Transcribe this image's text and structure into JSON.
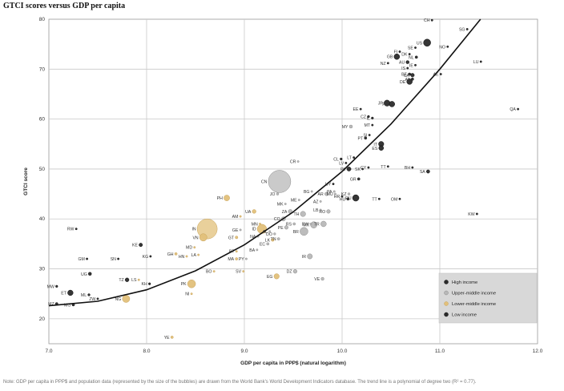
{
  "chart_data": {
    "type": "scatter",
    "title": "GTCI scores versus GDP per capita",
    "xlabel": "GDP per capita in PPP$ (natural logarithm)",
    "ylabel": "GTCI score",
    "xlim": [
      7.0,
      12.0
    ],
    "ylim": [
      15,
      80
    ],
    "x_ticks": [
      "7.0",
      "8.0",
      "9.0",
      "10.0",
      "11.0",
      "12.0"
    ],
    "y_ticks": [
      "20",
      "30",
      "40",
      "50",
      "60",
      "70",
      "80"
    ],
    "grid": true,
    "legend_position": "bottom-right",
    "colors": {
      "high": "#2b2b2b",
      "upper": "#b8b8b8",
      "lower": "#e2c07a",
      "low": "#2b2b2b",
      "trend": "#111111",
      "legend_bg": "#d8d8d8"
    },
    "series": [
      {
        "name": "High income",
        "key": "high"
      },
      {
        "name": "Upper-middle income",
        "key": "upper"
      },
      {
        "name": "Lower-middle income",
        "key": "lower"
      },
      {
        "name": "Low income",
        "key": "low"
      }
    ],
    "points": [
      {
        "label": "CH",
        "x": 10.92,
        "y": 79.8,
        "group": "high",
        "size": 1.2
      },
      {
        "label": "SG",
        "x": 11.28,
        "y": 78.0,
        "group": "high",
        "size": 1.2
      },
      {
        "label": "US",
        "x": 10.87,
        "y": 75.3,
        "group": "high",
        "size": 4.5
      },
      {
        "label": "NO",
        "x": 11.08,
        "y": 74.5,
        "group": "high",
        "size": 1.2
      },
      {
        "label": "SE",
        "x": 10.75,
        "y": 74.3,
        "group": "high",
        "size": 1.2
      },
      {
        "label": "FI",
        "x": 10.59,
        "y": 73.5,
        "group": "high",
        "size": 1.2
      },
      {
        "label": "DK",
        "x": 10.69,
        "y": 73.0,
        "group": "high",
        "size": 1.2
      },
      {
        "label": "GB",
        "x": 10.56,
        "y": 72.5,
        "group": "high",
        "size": 3.5
      },
      {
        "label": "NL",
        "x": 10.76,
        "y": 72.4,
        "group": "high",
        "size": 1.6
      },
      {
        "label": "NZ",
        "x": 10.47,
        "y": 71.2,
        "group": "high",
        "size": 1.2
      },
      {
        "label": "AU",
        "x": 10.67,
        "y": 71.4,
        "group": "high",
        "size": 2.0
      },
      {
        "label": "IE",
        "x": 10.75,
        "y": 70.8,
        "group": "high",
        "size": 1.2
      },
      {
        "label": "LU",
        "x": 11.42,
        "y": 71.5,
        "group": "high",
        "size": 1.2
      },
      {
        "label": "IS",
        "x": 10.67,
        "y": 70.2,
        "group": "high",
        "size": 1.2
      },
      {
        "label": "BE",
        "x": 10.69,
        "y": 69.0,
        "group": "high",
        "size": 1.6
      },
      {
        "label": "CA",
        "x": 10.72,
        "y": 68.8,
        "group": "high",
        "size": 2.3
      },
      {
        "label": "AE",
        "x": 11.01,
        "y": 69.0,
        "group": "high",
        "size": 1.2
      },
      {
        "label": "AT",
        "x": 10.72,
        "y": 68.0,
        "group": "high",
        "size": 1.6
      },
      {
        "label": "DE",
        "x": 10.69,
        "y": 67.5,
        "group": "high",
        "size": 3.5
      },
      {
        "label": "JP",
        "x": 10.46,
        "y": 63.2,
        "group": "high",
        "size": 3.8
      },
      {
        "label": "FR",
        "x": 10.51,
        "y": 63.0,
        "group": "high",
        "size": 3.5
      },
      {
        "label": "QA",
        "x": 11.8,
        "y": 62.0,
        "group": "high",
        "size": 1.2
      },
      {
        "label": "EE",
        "x": 10.19,
        "y": 62.0,
        "group": "high",
        "size": 1.2
      },
      {
        "label": "CZ",
        "x": 10.27,
        "y": 60.5,
        "group": "high",
        "size": 1.4
      },
      {
        "label": "IL",
        "x": 10.31,
        "y": 60.2,
        "group": "high",
        "size": 1.4
      },
      {
        "label": "MY",
        "x": 10.09,
        "y": 58.5,
        "group": "upper",
        "size": 2.0
      },
      {
        "label": "MT",
        "x": 10.31,
        "y": 58.8,
        "group": "high",
        "size": 1.2
      },
      {
        "label": "PT",
        "x": 10.24,
        "y": 56.2,
        "group": "high",
        "size": 1.6
      },
      {
        "label": "SI",
        "x": 10.28,
        "y": 56.8,
        "group": "high",
        "size": 1.2
      },
      {
        "label": "IT",
        "x": 10.4,
        "y": 55.0,
        "group": "high",
        "size": 3.3
      },
      {
        "label": "ES",
        "x": 10.4,
        "y": 54.2,
        "group": "high",
        "size": 3.0
      },
      {
        "label": "CL",
        "x": 9.99,
        "y": 52.0,
        "group": "high",
        "size": 1.4
      },
      {
        "label": "LT",
        "x": 10.12,
        "y": 52.3,
        "group": "high",
        "size": 1.2
      },
      {
        "label": "LV",
        "x": 10.04,
        "y": 51.2,
        "group": "high",
        "size": 1.2
      },
      {
        "label": "SK",
        "x": 10.21,
        "y": 50.0,
        "group": "high",
        "size": 1.2
      },
      {
        "label": "CY",
        "x": 10.27,
        "y": 50.3,
        "group": "high",
        "size": 1.2
      },
      {
        "label": "PL",
        "x": 10.07,
        "y": 50.0,
        "group": "high",
        "size": 2.6
      },
      {
        "label": "TT",
        "x": 10.47,
        "y": 50.5,
        "group": "high",
        "size": 1.2
      },
      {
        "label": "BH",
        "x": 10.72,
        "y": 50.3,
        "group": "high",
        "size": 1.2
      },
      {
        "label": "SA",
        "x": 10.88,
        "y": 49.5,
        "group": "high",
        "size": 2.1
      },
      {
        "label": "GR",
        "x": 10.17,
        "y": 48.0,
        "group": "high",
        "size": 1.6
      },
      {
        "label": "CR",
        "x": 9.55,
        "y": 51.5,
        "group": "upper",
        "size": 1.2
      },
      {
        "label": "CN",
        "x": 9.36,
        "y": 47.5,
        "group": "upper",
        "size": 14.0
      },
      {
        "label": "UY",
        "x": 9.91,
        "y": 47.0,
        "group": "high",
        "size": 1.2
      },
      {
        "label": "PA",
        "x": 9.92,
        "y": 45.5,
        "group": "upper",
        "size": 1.2
      },
      {
        "label": "MU",
        "x": 9.93,
        "y": 45.0,
        "group": "upper",
        "size": 1.2
      },
      {
        "label": "BG",
        "x": 9.69,
        "y": 45.5,
        "group": "upper",
        "size": 1.2
      },
      {
        "label": "AR",
        "x": 9.84,
        "y": 45.0,
        "group": "upper",
        "size": 2.2
      },
      {
        "label": "KZ",
        "x": 10.07,
        "y": 45.0,
        "group": "upper",
        "size": 1.5
      },
      {
        "label": "HR",
        "x": 10.0,
        "y": 44.5,
        "group": "high",
        "size": 1.2
      },
      {
        "label": "HU",
        "x": 10.06,
        "y": 44.0,
        "group": "high",
        "size": 1.6
      },
      {
        "label": "RU",
        "x": 10.14,
        "y": 44.2,
        "group": "high",
        "size": 4.0
      },
      {
        "label": "TT",
        "x": 10.38,
        "y": 44.0,
        "group": "high",
        "size": 1.2
      },
      {
        "label": "OM",
        "x": 10.59,
        "y": 44.0,
        "group": "high",
        "size": 1.2
      },
      {
        "label": "JO",
        "x": 9.34,
        "y": 45.0,
        "group": "upper",
        "size": 1.5
      },
      {
        "label": "ME",
        "x": 9.56,
        "y": 43.8,
        "group": "upper",
        "size": 1.2
      },
      {
        "label": "MK",
        "x": 9.42,
        "y": 43.0,
        "group": "upper",
        "size": 1.2
      },
      {
        "label": "AZ",
        "x": 9.78,
        "y": 43.5,
        "group": "upper",
        "size": 1.2
      },
      {
        "label": "LB",
        "x": 9.78,
        "y": 41.8,
        "group": "upper",
        "size": 1.2
      },
      {
        "label": "RO",
        "x": 9.86,
        "y": 41.5,
        "group": "upper",
        "size": 2.3
      },
      {
        "label": "ZA",
        "x": 9.47,
        "y": 41.5,
        "group": "upper",
        "size": 2.5
      },
      {
        "label": "TH",
        "x": 9.6,
        "y": 41.0,
        "group": "upper",
        "size": 3.3
      },
      {
        "label": "KW",
        "x": 11.38,
        "y": 41.0,
        "group": "high",
        "size": 1.2
      },
      {
        "label": "PH",
        "x": 8.82,
        "y": 44.2,
        "group": "lower",
        "size": 3.6
      },
      {
        "label": "UA",
        "x": 9.1,
        "y": 41.5,
        "group": "lower",
        "size": 2.4
      },
      {
        "label": "AM",
        "x": 8.96,
        "y": 40.5,
        "group": "lower",
        "size": 1.2
      },
      {
        "label": "CO",
        "x": 9.4,
        "y": 40.0,
        "group": "upper",
        "size": 2.6
      },
      {
        "label": "RS",
        "x": 9.51,
        "y": 39.0,
        "group": "upper",
        "size": 1.6
      },
      {
        "label": "PE",
        "x": 9.43,
        "y": 38.3,
        "group": "upper",
        "size": 2.3
      },
      {
        "label": "BW",
        "x": 9.68,
        "y": 39.0,
        "group": "upper",
        "size": 1.2
      },
      {
        "label": "MX",
        "x": 9.71,
        "y": 38.8,
        "group": "upper",
        "size": 4.0
      },
      {
        "label": "TR",
        "x": 9.81,
        "y": 39.0,
        "group": "upper",
        "size": 3.5
      },
      {
        "label": "ID",
        "x": 9.18,
        "y": 38.0,
        "group": "lower",
        "size": 5.8
      },
      {
        "label": "MN",
        "x": 9.16,
        "y": 39.0,
        "group": "lower",
        "size": 1.2
      },
      {
        "label": "AL",
        "x": 9.26,
        "y": 37.5,
        "group": "upper",
        "size": 1.2
      },
      {
        "label": "DO",
        "x": 9.31,
        "y": 37.0,
        "group": "upper",
        "size": 1.4
      },
      {
        "label": "BR",
        "x": 9.61,
        "y": 37.5,
        "group": "upper",
        "size": 5.0
      },
      {
        "label": "NA",
        "x": 9.14,
        "y": 36.5,
        "group": "upper",
        "size": 1.2
      },
      {
        "label": "LK",
        "x": 9.29,
        "y": 35.8,
        "group": "lower",
        "size": 1.8
      },
      {
        "label": "TN",
        "x": 9.35,
        "y": 36.0,
        "group": "upper",
        "size": 1.6
      },
      {
        "label": "EC",
        "x": 9.24,
        "y": 35.0,
        "group": "upper",
        "size": 1.6
      },
      {
        "label": "IN",
        "x": 8.62,
        "y": 38.0,
        "group": "lower",
        "size": 12.5
      },
      {
        "label": "VN",
        "x": 8.58,
        "y": 36.3,
        "group": "lower",
        "size": 4.6
      },
      {
        "label": "GE",
        "x": 8.96,
        "y": 37.8,
        "group": "upper",
        "size": 1.2
      },
      {
        "label": "GT",
        "x": 8.92,
        "y": 36.3,
        "group": "lower",
        "size": 1.7
      },
      {
        "label": "MD",
        "x": 8.49,
        "y": 34.3,
        "group": "lower",
        "size": 1.2
      },
      {
        "label": "KE",
        "x": 7.94,
        "y": 34.8,
        "group": "low",
        "size": 2.2
      },
      {
        "label": "BA",
        "x": 9.13,
        "y": 33.8,
        "group": "upper",
        "size": 1.2
      },
      {
        "label": "BT",
        "x": 8.92,
        "y": 33.5,
        "group": "lower",
        "size": 1.2
      },
      {
        "label": "KG",
        "x": 8.04,
        "y": 32.5,
        "group": "low",
        "size": 1.2
      },
      {
        "label": "GH",
        "x": 8.3,
        "y": 33.0,
        "group": "lower",
        "size": 1.6
      },
      {
        "label": "HN",
        "x": 8.41,
        "y": 32.5,
        "group": "lower",
        "size": 1.2
      },
      {
        "label": "LA",
        "x": 8.53,
        "y": 32.8,
        "group": "lower",
        "size": 1.2
      },
      {
        "label": "MA",
        "x": 8.92,
        "y": 32.0,
        "group": "lower",
        "size": 1.6
      },
      {
        "label": "PY",
        "x": 9.02,
        "y": 32.0,
        "group": "upper",
        "size": 1.2
      },
      {
        "label": "IR",
        "x": 9.67,
        "y": 32.5,
        "group": "upper",
        "size": 3.2
      },
      {
        "label": "RW",
        "x": 7.28,
        "y": 38.0,
        "group": "low",
        "size": 1.2
      },
      {
        "label": "GM",
        "x": 7.39,
        "y": 32.0,
        "group": "low",
        "size": 1.2
      },
      {
        "label": "SN",
        "x": 7.71,
        "y": 32.0,
        "group": "low",
        "size": 1.2
      },
      {
        "label": "BO",
        "x": 8.69,
        "y": 29.5,
        "group": "lower",
        "size": 1.2
      },
      {
        "label": "SV",
        "x": 8.99,
        "y": 29.5,
        "group": "lower",
        "size": 1.2
      },
      {
        "label": "UG",
        "x": 7.42,
        "y": 29.0,
        "group": "low",
        "size": 2.0
      },
      {
        "label": "TZ",
        "x": 7.8,
        "y": 27.8,
        "group": "low",
        "size": 2.4
      },
      {
        "label": "LS",
        "x": 7.92,
        "y": 27.8,
        "group": "lower",
        "size": 1.2
      },
      {
        "label": "KH",
        "x": 8.03,
        "y": 27.0,
        "group": "low",
        "size": 1.4
      },
      {
        "label": "EG",
        "x": 9.33,
        "y": 28.5,
        "group": "lower",
        "size": 3.3
      },
      {
        "label": "DZ",
        "x": 9.52,
        "y": 29.5,
        "group": "upper",
        "size": 2.4
      },
      {
        "label": "VE",
        "x": 9.8,
        "y": 28.0,
        "group": "upper",
        "size": 1.9
      },
      {
        "label": "PK",
        "x": 8.46,
        "y": 27.0,
        "group": "lower",
        "size": 5.0
      },
      {
        "label": "NI",
        "x": 8.46,
        "y": 25.0,
        "group": "lower",
        "size": 1.2
      },
      {
        "label": "MW",
        "x": 7.08,
        "y": 26.5,
        "group": "low",
        "size": 1.4
      },
      {
        "label": "ET",
        "x": 7.22,
        "y": 25.2,
        "group": "low",
        "size": 3.4
      },
      {
        "label": "ML",
        "x": 7.41,
        "y": 24.8,
        "group": "low",
        "size": 1.4
      },
      {
        "label": "ZW",
        "x": 7.5,
        "y": 24.0,
        "group": "low",
        "size": 1.2
      },
      {
        "label": "NG",
        "x": 7.79,
        "y": 24.0,
        "group": "lower",
        "size": 4.6
      },
      {
        "label": "MZ",
        "x": 7.08,
        "y": 23.0,
        "group": "low",
        "size": 1.6
      },
      {
        "label": "MG",
        "x": 7.25,
        "y": 22.8,
        "group": "low",
        "size": 1.6
      },
      {
        "label": "YE",
        "x": 8.26,
        "y": 16.3,
        "group": "lower",
        "size": 1.6
      }
    ],
    "trend": {
      "x": [
        7.0,
        7.5,
        8.0,
        8.5,
        9.0,
        9.5,
        10.0,
        10.5,
        11.0,
        11.5
      ],
      "y": [
        22.6,
        23.5,
        25.8,
        29.6,
        34.8,
        41.4,
        49.5,
        59.0,
        70.0,
        82.0
      ]
    }
  },
  "note": "Note: GDP per capita in PPP$ and population data (represented by the size of the bubbles) are drawn from the World Bank's World Development Indicators database. The trend line is a polynomial of degree two (R² = 0.77)."
}
